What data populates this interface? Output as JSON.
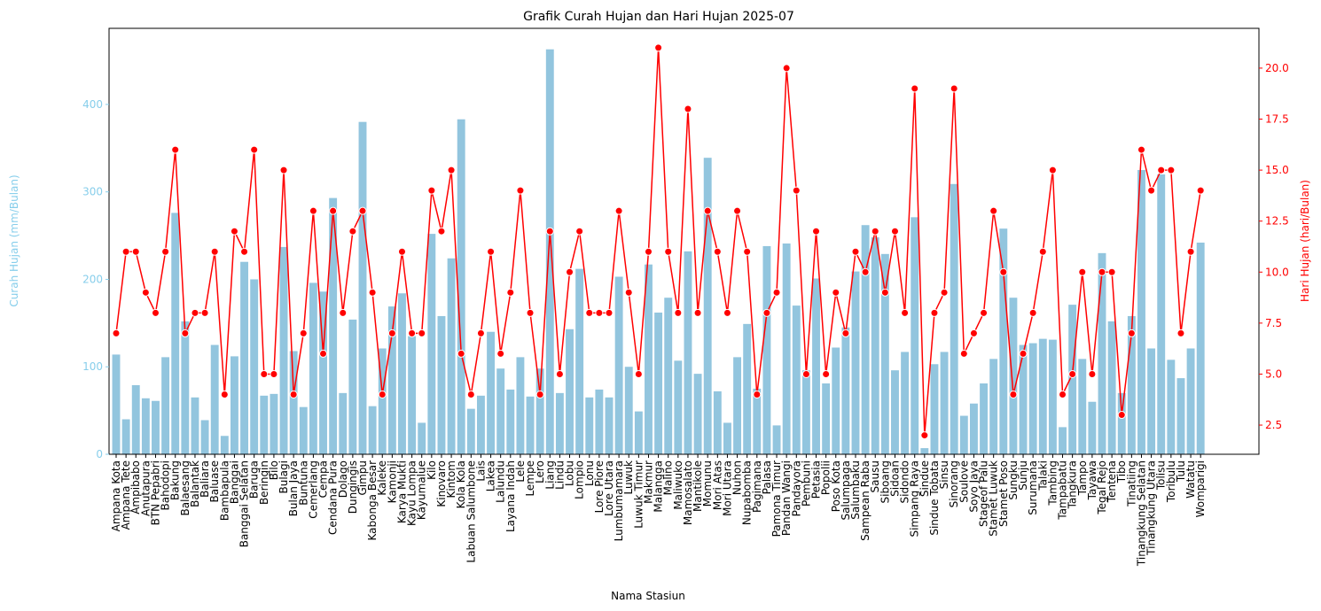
{
  "chart_data": {
    "type": "bar",
    "title": "Grafik Curah Hujan dan Hari Hujan 2025-07",
    "x_label": "Nama Stasiun",
    "y_label": "Curah Hujan (mm/Bulan)",
    "y2_label": "Hari Hujan (hari/Bulan)",
    "categories": [
      "Ampana Kota",
      "Ampana Tete",
      "Ampibabo",
      "Anutapura",
      "BTN Pepabri",
      "Bahodopi",
      "Bakung",
      "Balaesang",
      "Balantak",
      "Baliara",
      "Baluase",
      "Bambapula",
      "Banggai",
      "Banggai Selatan",
      "Baruga",
      "Beringin",
      "Bilo",
      "Bulagi",
      "Bulan Jaya",
      "Buntuna",
      "Cemerlang",
      "Cempa",
      "Cendana Pura",
      "Dolago",
      "Dungingis",
      "Gimpu",
      "Kabonga Besar",
      "Kaleke",
      "Kamonji",
      "Karya Mukti",
      "Kayu Lompa",
      "Kayumalue",
      "Kilo",
      "Kinovaro",
      "Kintom",
      "Kola Kola",
      "Labuan Salumbone",
      "Lais",
      "Lakea",
      "Lalundu",
      "Layana Indah",
      "Lele",
      "Lempe",
      "Lero",
      "Liang",
      "Lindu",
      "Lobu",
      "Lompio",
      "Lonu",
      "Lore Piore",
      "Lore Utara",
      "Lumbumamara",
      "Luwuk",
      "Luwuk Timur",
      "Makmur",
      "Malangga",
      "Malino",
      "Maliwuko",
      "Mamosalato",
      "Mantikole",
      "Momunu",
      "Mori Atas",
      "Mori Utara",
      "Nuhon",
      "Nupabomba",
      "Pagimana",
      "Palasa",
      "Pamona Timur",
      "Pandan Wangi",
      "Pandayora",
      "Pembuni",
      "Petasia",
      "Popolii",
      "Poso Kota",
      "Salumpaga",
      "Salumbaku",
      "Sampean Raba",
      "Sausu",
      "Siboang",
      "Sidoan",
      "Sidondo",
      "Simpang Raya",
      "Sindue",
      "Sindue Tobata",
      "Sinsu",
      "Sinorang",
      "Soulove",
      "Soyo Jaya",
      "Stageof Palu",
      "Stamet Luwuk",
      "Stamet Poso",
      "Sungku",
      "Sunju",
      "Surumana",
      "Talaki",
      "Tambing",
      "Tampabatu",
      "Tangkura",
      "Tampo",
      "Tayawa",
      "Tegal Rejo",
      "Tentena",
      "Tibo",
      "Tinatiing",
      "Tinangkung Selatan",
      "Tinangkung Utara",
      "Tolisu",
      "Toribulu",
      "Tulu",
      "Watatu",
      "Womparigi"
    ],
    "series": [
      {
        "color": "#92c5de",
        "values": [
          114,
          40,
          79,
          64,
          61,
          111,
          276,
          152,
          65,
          39,
          125,
          21,
          112,
          220,
          200,
          67,
          69,
          237,
          118,
          54,
          196,
          186,
          293,
          70,
          154,
          380,
          55,
          121,
          169,
          184,
          135,
          36,
          252,
          158,
          224,
          383,
          52,
          67,
          140,
          98,
          74,
          111,
          66,
          98,
          463,
          70,
          143,
          212,
          65,
          74,
          65,
          203,
          100,
          49,
          217,
          162,
          179,
          107,
          232,
          92,
          339,
          72,
          36,
          111,
          149,
          75,
          238,
          33,
          241,
          170,
          96,
          201,
          81,
          122,
          145,
          209,
          262,
          248,
          229,
          96,
          117,
          271,
          7,
          103,
          117,
          309,
          44,
          58,
          81,
          109,
          258,
          179,
          125,
          127,
          132,
          131,
          31,
          171,
          109,
          60,
          230,
          152,
          70,
          158,
          325,
          121,
          320,
          108,
          87,
          121,
          242
        ]
      },
      {
        "type": "line",
        "axis": "y2",
        "color": "#ff0000",
        "values": [
          7,
          11,
          11,
          9,
          8,
          11,
          16,
          7,
          8,
          8,
          11,
          4,
          12,
          11,
          16,
          5,
          5,
          15,
          4,
          7,
          13,
          6,
          13,
          8,
          12,
          13,
          9,
          4,
          7,
          11,
          7,
          7,
          14,
          12,
          15,
          6,
          4,
          7,
          11,
          6,
          9,
          14,
          8,
          4,
          12,
          5,
          10,
          12,
          8,
          8,
          8,
          13,
          9,
          5,
          11,
          21,
          11,
          8,
          18,
          8,
          13,
          11,
          8,
          13,
          11,
          4,
          8,
          9,
          20,
          14,
          5,
          12,
          5,
          9,
          7,
          11,
          10,
          12,
          9,
          12,
          8,
          19,
          2,
          8,
          9,
          19,
          6,
          7,
          8,
          13,
          10,
          4,
          6,
          8,
          11,
          15,
          4,
          5,
          10,
          5,
          10,
          10,
          3,
          7,
          16,
          14,
          15,
          15,
          7,
          11,
          14
        ]
      }
    ],
    "ylim": [
      0,
      487
    ],
    "yticks": [
      0,
      100,
      200,
      300,
      400
    ],
    "y2lim": [
      1.07,
      21.95
    ],
    "y2ticks": [
      2.5,
      {
        "value": 5,
        "label": "5.0"
      },
      7.5,
      {
        "value": 10,
        "label": "10.0"
      },
      12.5,
      {
        "value": 15,
        "label": "15.0"
      },
      17.5,
      {
        "value": 20,
        "label": "20.0"
      }
    ],
    "y_axis_color": "#87ceeb",
    "y2_axis_color": "#ff0000"
  }
}
